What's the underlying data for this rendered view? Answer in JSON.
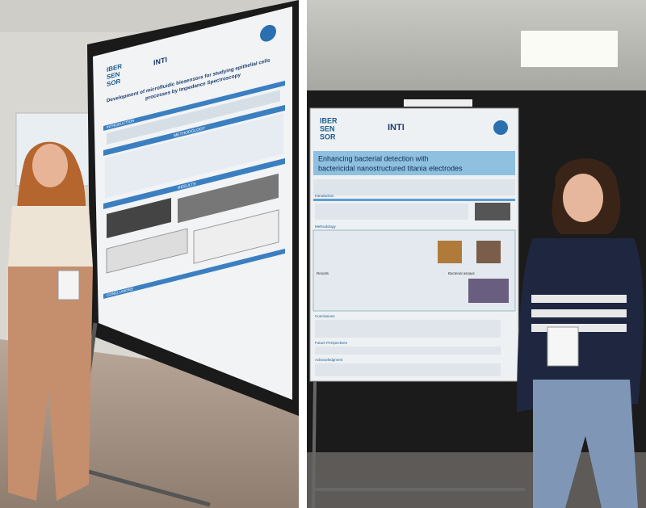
{
  "photos": [
    {
      "poster": {
        "logo": [
          "IBER",
          "SEN",
          "SOR"
        ],
        "institute": "INTI",
        "title": [
          "Development of microfluidic biosensors for studying epithelial cells",
          "processes by Impedance Spectroscopy"
        ],
        "sections": [
          "INTRODUCTION",
          "METHODOLOGY",
          "RESULTS",
          "CONCLUSIONS"
        ]
      }
    },
    {
      "poster": {
        "logo": [
          "IBER",
          "SEN",
          "SOR"
        ],
        "institute": "INTI",
        "title": [
          "Enhancing bacterial detection with",
          "bactericidal nanostructured titania electrodes"
        ],
        "sections": [
          "Introduction",
          "Methodology",
          "Conclusions",
          "Future Perspectives",
          "Acknowledgment"
        ],
        "labels": [
          "Bacterial assays",
          "Results"
        ]
      }
    }
  ]
}
